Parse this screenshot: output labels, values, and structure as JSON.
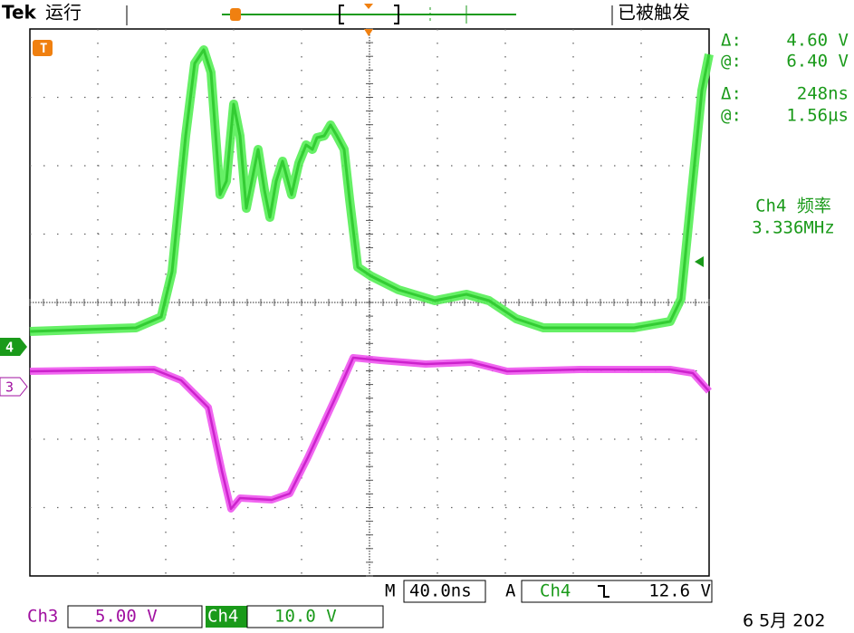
{
  "header": {
    "brand": "Tek",
    "status": "运行",
    "trigger_state": "已被触发"
  },
  "markers": {
    "trigger": "T",
    "ch4": "4",
    "ch3": "3"
  },
  "measurements": [
    {
      "label": "Δ:",
      "value": "4.60 V"
    },
    {
      "label": "@:",
      "value": "6.40 V"
    },
    {
      "label": "Δ:",
      "value": "248ns"
    },
    {
      "label": "@:",
      "value": "1.56µs"
    }
  ],
  "frequency": {
    "label": "Ch4 频率",
    "value": "3.336MHz"
  },
  "timebase": {
    "label": "M",
    "value": "40.0ns"
  },
  "trigger": {
    "label": "A",
    "source": "Ch4",
    "level": "12.6 V"
  },
  "channels": [
    {
      "name": "Ch3",
      "scale": "5.00 V"
    },
    {
      "name": "Ch4",
      "scale": "10.0 V"
    }
  ],
  "date": "6 5月 202"
}
